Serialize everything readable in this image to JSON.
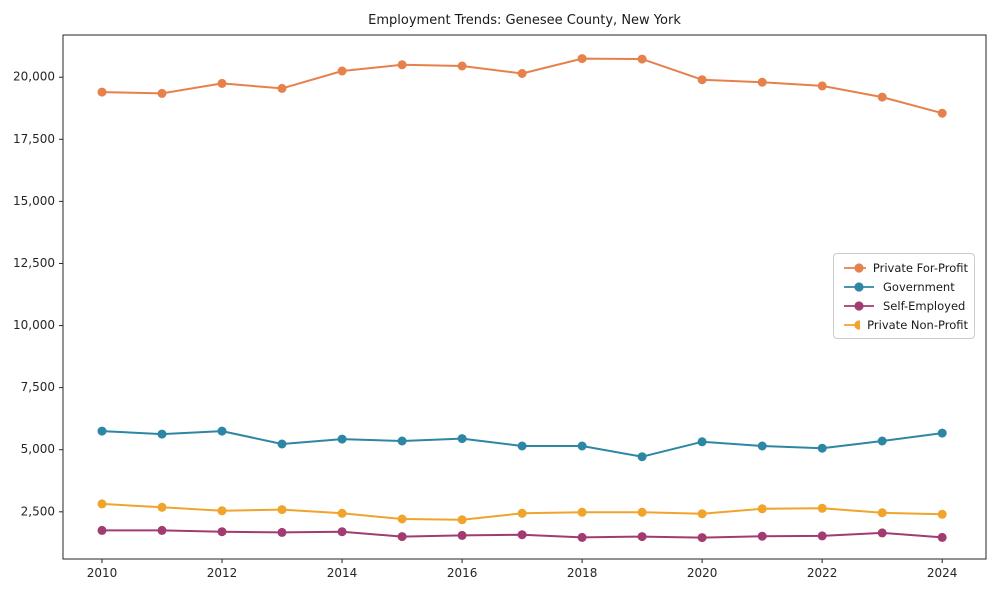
{
  "title": "Employment Trends: Genesee County, New York",
  "chart_data": {
    "type": "line",
    "title": "Employment Trends: Genesee County, New York",
    "xlabel": "",
    "ylabel": "",
    "grid": false,
    "legend_position": "middle-right",
    "xlim": [
      2009.35,
      2024.73
    ],
    "ylim": [
      600,
      21700
    ],
    "xticks": [
      2010,
      2012,
      2014,
      2016,
      2018,
      2020,
      2022,
      2024
    ],
    "yticks": [
      2500,
      5000,
      7500,
      10000,
      12500,
      15000,
      17500,
      20000
    ],
    "x": [
      2010,
      2011,
      2012,
      2013,
      2014,
      2015,
      2016,
      2017,
      2018,
      2019,
      2020,
      2021,
      2022,
      2023,
      2024
    ],
    "series": [
      {
        "name": "Private For-Profit",
        "color": "#E6814C",
        "values": [
          19400,
          19350,
          19750,
          19550,
          20250,
          20500,
          20450,
          20150,
          20750,
          20730,
          19900,
          19800,
          19650,
          19200,
          18550
        ]
      },
      {
        "name": "Government",
        "color": "#2E86A5",
        "values": [
          5750,
          5630,
          5750,
          5230,
          5430,
          5350,
          5450,
          5150,
          5150,
          4720,
          5320,
          5150,
          5060,
          5350,
          5670
        ]
      },
      {
        "name": "Self-Employed",
        "color": "#A23B72",
        "values": [
          1750,
          1750,
          1700,
          1670,
          1700,
          1500,
          1550,
          1580,
          1470,
          1500,
          1460,
          1520,
          1530,
          1650,
          1470
        ]
      },
      {
        "name": "Private Non-Profit",
        "color": "#F0A42C",
        "values": [
          2820,
          2680,
          2540,
          2590,
          2440,
          2210,
          2180,
          2440,
          2480,
          2480,
          2420,
          2620,
          2640,
          2460,
          2400
        ]
      }
    ]
  }
}
